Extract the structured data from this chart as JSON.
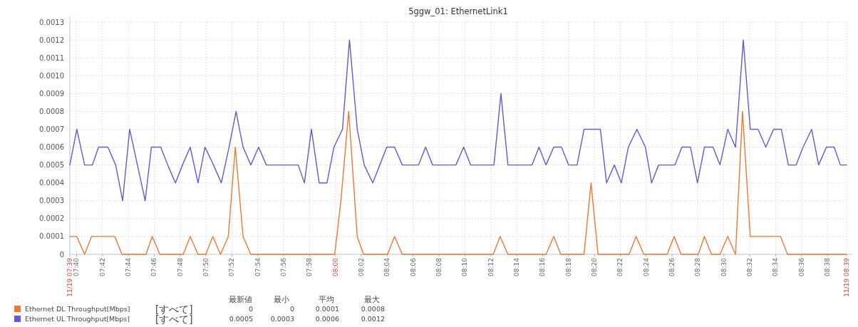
{
  "chart_data": {
    "type": "line",
    "title": "5ggw_01: EthernetLink1",
    "xlim": [
      7.658,
      8.658
    ],
    "ylim": [
      0,
      0.0013
    ],
    "xticks": [
      {
        "value": 7.658,
        "label": "11/19 07:39"
      },
      {
        "value": 7.6667,
        "label": "07:40"
      },
      {
        "value": 7.7,
        "label": "07:42"
      },
      {
        "value": 7.7333,
        "label": "07:44"
      },
      {
        "value": 7.7667,
        "label": "07:46"
      },
      {
        "value": 7.8,
        "label": "07:48"
      },
      {
        "value": 7.8333,
        "label": "07:50"
      },
      {
        "value": 7.8667,
        "label": "07:52"
      },
      {
        "value": 7.9,
        "label": "07:54"
      },
      {
        "value": 7.9333,
        "label": "07:56"
      },
      {
        "value": 7.9667,
        "label": "07:58"
      },
      {
        "value": 8,
        "label": "08:00"
      },
      {
        "value": 8.0333,
        "label": "08:02"
      },
      {
        "value": 8.0667,
        "label": "08:04"
      },
      {
        "value": 8.1,
        "label": "08:06"
      },
      {
        "value": 8.1333,
        "label": "08:08"
      },
      {
        "value": 8.1667,
        "label": "08:10"
      },
      {
        "value": 8.2,
        "label": "08:12"
      },
      {
        "value": 8.2333,
        "label": "08:14"
      },
      {
        "value": 8.2667,
        "label": "08:16"
      },
      {
        "value": 8.3,
        "label": "08:18"
      },
      {
        "value": 8.3333,
        "label": "08:20"
      },
      {
        "value": 8.3667,
        "label": "08:22"
      },
      {
        "value": 8.4,
        "label": "08:24"
      },
      {
        "value": 8.4333,
        "label": "08:26"
      },
      {
        "value": 8.4667,
        "label": "08:28"
      },
      {
        "value": 8.5,
        "label": "08:30"
      },
      {
        "value": 8.5333,
        "label": "08:32"
      },
      {
        "value": 8.5667,
        "label": "08:34"
      },
      {
        "value": 8.6,
        "label": "08:36"
      },
      {
        "value": 8.6333,
        "label": "08:38"
      },
      {
        "value": 8.658,
        "label": "11/19 08:39"
      }
    ],
    "yticks": [
      0,
      0.0001,
      0.0002,
      0.0003,
      0.0004,
      0.0005,
      0.0006,
      0.0007,
      0.0008,
      0.0009,
      {
        "value": 0.001,
        "label": "0.0010"
      },
      0.0011,
      0.0012,
      0.0013
    ],
    "grid": true,
    "legend": "bottom left",
    "series": [
      {
        "name": "Ethernet DL Throughput[Mbps]",
        "color": "#ee7733",
        "x": [
          7.658,
          7.667,
          7.677,
          7.686,
          7.716,
          7.725,
          7.756,
          7.764,
          7.774,
          7.804,
          7.813,
          7.823,
          7.833,
          7.842,
          7.852,
          7.862,
          7.871,
          7.881,
          7.891,
          7.999,
          8.007,
          8.017,
          8.028,
          8.036,
          8.067,
          8.076,
          8.086,
          8.203,
          8.212,
          8.222,
          8.271,
          8.281,
          8.29,
          8.32,
          8.329,
          8.338,
          8.378,
          8.387,
          8.397,
          8.427,
          8.436,
          8.445,
          8.467,
          8.475,
          8.484,
          8.495,
          8.505,
          8.515,
          8.524,
          8.534,
          8.573,
          8.582,
          8.658
        ],
        "values": [
          0.0001,
          0.0001,
          0,
          0.0001,
          0.0001,
          0,
          0,
          0.0001,
          0,
          0,
          0.0001,
          0,
          0,
          0.0001,
          0,
          0.0001,
          0.0006,
          0.0001,
          0,
          0,
          0.0003,
          0.0008,
          0.0001,
          0,
          0,
          0.0001,
          0,
          0,
          0.0001,
          0,
          0,
          0.0001,
          0,
          0,
          0.0004,
          0,
          0,
          0.0001,
          0,
          0,
          0.0001,
          0,
          0,
          0.0001,
          0,
          0,
          0.0001,
          0,
          0.0008,
          0.0001,
          0.0001,
          0,
          0
        ]
      },
      {
        "name": "Ethernet UL Throughput[Mbps]",
        "color": "#6655dd",
        "x": [
          7.658,
          7.667,
          7.677,
          7.687,
          7.695,
          7.707,
          7.717,
          7.726,
          7.735,
          7.745,
          7.755,
          7.763,
          7.775,
          7.784,
          7.794,
          7.803,
          7.813,
          7.823,
          7.832,
          7.843,
          7.853,
          7.863,
          7.872,
          7.881,
          7.891,
          7.901,
          7.911,
          7.952,
          7.96,
          7.969,
          7.979,
          7.989,
          7.998,
          8.009,
          8.018,
          8.028,
          8.037,
          8.048,
          8.057,
          8.066,
          8.076,
          8.086,
          8.107,
          8.116,
          8.125,
          8.155,
          8.165,
          8.174,
          8.204,
          8.213,
          8.222,
          8.253,
          8.262,
          8.271,
          8.281,
          8.291,
          8.3,
          8.311,
          8.32,
          8.341,
          8.349,
          8.359,
          8.368,
          8.377,
          8.388,
          8.399,
          8.407,
          8.416,
          8.437,
          8.446,
          8.457,
          8.466,
          8.475,
          8.486,
          8.495,
          8.505,
          8.515,
          8.525,
          8.534,
          8.544,
          8.554,
          8.564,
          8.574,
          8.583,
          8.593,
          8.602,
          8.613,
          8.622,
          8.632,
          8.642,
          8.65,
          8.658
        ],
        "values": [
          0.0005,
          0.0007,
          0.0005,
          0.0005,
          0.0006,
          0.0006,
          0.0005,
          0.0003,
          0.0007,
          0.0005,
          0.0003,
          0.0006,
          0.0006,
          0.0005,
          0.0004,
          0.0005,
          0.0006,
          0.0004,
          0.0006,
          0.0005,
          0.0004,
          0.0006,
          0.0008,
          0.0006,
          0.0005,
          0.0006,
          0.0005,
          0.0005,
          0.0004,
          0.0007,
          0.0004,
          0.0004,
          0.0006,
          0.0007,
          0.0012,
          0.0007,
          0.0005,
          0.0004,
          0.0005,
          0.0006,
          0.0006,
          0.0005,
          0.0005,
          0.0006,
          0.0005,
          0.0005,
          0.0006,
          0.0005,
          0.0005,
          0.0009,
          0.0005,
          0.0005,
          0.0006,
          0.0005,
          0.0006,
          0.0006,
          0.0005,
          0.0005,
          0.0007,
          0.0007,
          0.0004,
          0.0005,
          0.0004,
          0.0006,
          0.0007,
          0.0006,
          0.0004,
          0.0005,
          0.0005,
          0.0006,
          0.0006,
          0.0004,
          0.0006,
          0.0006,
          0.0005,
          0.0007,
          0.0006,
          0.0012,
          0.0007,
          0.0007,
          0.0006,
          0.0007,
          0.0007,
          0.0005,
          0.0005,
          0.0006,
          0.0007,
          0.0005,
          0.0006,
          0.0006,
          0.0005,
          0.0005
        ]
      }
    ],
    "annotations": [
      "最新値",
      "最小",
      "平均",
      "最大",
      "[すべて]",
      "0",
      "0",
      "0.0001",
      "0.0008",
      "[すべて]",
      "0.0005",
      "0.0003",
      "0.0006",
      "0.0012"
    ]
  }
}
